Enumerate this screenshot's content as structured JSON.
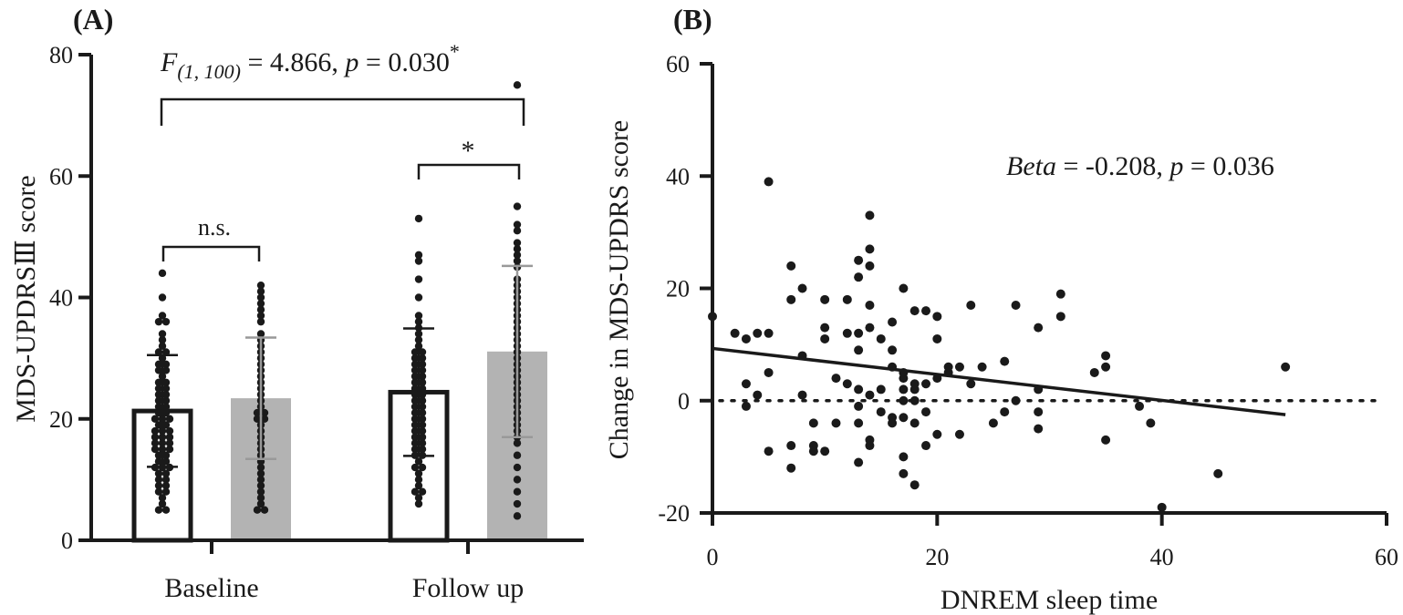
{
  "chart_data": [
    {
      "panel_label": "(A)",
      "type": "bar",
      "ylabel": "MDS-UPDRSⅢ score",
      "ylim": [
        0,
        80
      ],
      "yticks": [
        "0",
        "20",
        "40",
        "60",
        "80"
      ],
      "categories": [
        "Baseline",
        "Follow up"
      ],
      "series": [
        {
          "fill": "#ffffff",
          "edge": "#1a1a1a",
          "errcolor": "#1a1a1a",
          "values": [
            21.3,
            24.4
          ],
          "sd": [
            9.2,
            10.5
          ],
          "points": [
            [
              5,
              5,
              6,
              7,
              8,
              8,
              9,
              9,
              10,
              10,
              11,
              11,
              12,
              12,
              12,
              13,
              13,
              14,
              14,
              15,
              15,
              15,
              16,
              16,
              16,
              17,
              17,
              17,
              18,
              18,
              18,
              19,
              19,
              20,
              20,
              20,
              21,
              21,
              22,
              22,
              23,
              23,
              24,
              24,
              25,
              25,
              26,
              26,
              27,
              28,
              28,
              29,
              29,
              30,
              31,
              31,
              32,
              33,
              34,
              36,
              36,
              37,
              40,
              44
            ],
            [
              6,
              7,
              8,
              8,
              9,
              10,
              11,
              12,
              12,
              13,
              14,
              14,
              15,
              15,
              16,
              16,
              17,
              17,
              18,
              18,
              19,
              19,
              20,
              20,
              21,
              21,
              22,
              22,
              23,
              23,
              24,
              24,
              25,
              25,
              26,
              26,
              27,
              27,
              28,
              28,
              29,
              29,
              30,
              30,
              31,
              31,
              32,
              33,
              34,
              35,
              36,
              37,
              40,
              43,
              46,
              47,
              53
            ]
          ]
        },
        {
          "fill": "#b3b3b3",
          "edge": "#b3b3b3",
          "errcolor": "#999999",
          "values": [
            23.4,
            31.1
          ],
          "sd": [
            10.0,
            14.1
          ],
          "points": [
            [
              5,
              5,
              6,
              7,
              8,
              9,
              10,
              11,
              12,
              13,
              14,
              15,
              16,
              17,
              18,
              19,
              20,
              20,
              21,
              21,
              22,
              23,
              24,
              25,
              26,
              27,
              28,
              29,
              30,
              31,
              32,
              33,
              34,
              36,
              37,
              38,
              39,
              40,
              41,
              42
            ],
            [
              4,
              6,
              8,
              10,
              12,
              14,
              16,
              17,
              18,
              19,
              20,
              21,
              22,
              23,
              24,
              25,
              26,
              27,
              28,
              29,
              30,
              31,
              32,
              33,
              34,
              35,
              36,
              37,
              38,
              39,
              40,
              41,
              42,
              43,
              45,
              46,
              47,
              48,
              49,
              51,
              52,
              55,
              75
            ]
          ]
        }
      ],
      "annotations": {
        "overall_test": {
          "F": "F",
          "df": "(1, 100)",
          "rest": " = 4.866, ",
          "p": "p",
          "pval": " = 0.030",
          "star": "*"
        },
        "baseline_test": "n.s.",
        "followup_test": "*"
      }
    },
    {
      "panel_label": "(B)",
      "type": "scatter",
      "xlabel": "DNREM sleep time",
      "ylabel": "Change in MDS-UPDRS score",
      "xlim": [
        0,
        60
      ],
      "ylim": [
        -20,
        60
      ],
      "xticks": [
        "0",
        "20",
        "40",
        "60"
      ],
      "yticks": [
        "-20",
        "0",
        "20",
        "40",
        "60"
      ],
      "annotation": {
        "beta": "Beta",
        "rest": " = -0.208, ",
        "p": "p",
        "pval": " = 0.036"
      },
      "regression": {
        "x": [
          0,
          51
        ],
        "y": [
          9.3,
          -2.5
        ]
      },
      "reference_line_y": 0,
      "points": [
        [
          0,
          15
        ],
        [
          2,
          12
        ],
        [
          3,
          11
        ],
        [
          3,
          3
        ],
        [
          3,
          -1
        ],
        [
          4,
          12
        ],
        [
          4,
          1
        ],
        [
          5,
          12
        ],
        [
          5,
          5
        ],
        [
          5,
          39
        ],
        [
          5,
          -9
        ],
        [
          7,
          24
        ],
        [
          7,
          18
        ],
        [
          7,
          -8
        ],
        [
          7,
          -12
        ],
        [
          8,
          20
        ],
        [
          8,
          8
        ],
        [
          8,
          1
        ],
        [
          9,
          -4
        ],
        [
          9,
          -8
        ],
        [
          9,
          -9
        ],
        [
          10,
          18
        ],
        [
          10,
          13
        ],
        [
          10,
          11
        ],
        [
          10,
          -9
        ],
        [
          11,
          4
        ],
        [
          11,
          -4
        ],
        [
          12,
          18
        ],
        [
          12,
          12
        ],
        [
          12,
          3
        ],
        [
          13,
          25
        ],
        [
          13,
          22
        ],
        [
          13,
          12
        ],
        [
          13,
          9
        ],
        [
          13,
          2
        ],
        [
          13,
          -1
        ],
        [
          13,
          -4
        ],
        [
          13,
          -11
        ],
        [
          14,
          33
        ],
        [
          14,
          27
        ],
        [
          14,
          24
        ],
        [
          14,
          17
        ],
        [
          14,
          13
        ],
        [
          14,
          1
        ],
        [
          14,
          -7
        ],
        [
          14,
          -8
        ],
        [
          15,
          11
        ],
        [
          15,
          2
        ],
        [
          15,
          -2
        ],
        [
          16,
          14
        ],
        [
          16,
          9
        ],
        [
          16,
          6
        ],
        [
          16,
          -3
        ],
        [
          16,
          -4
        ],
        [
          17,
          20
        ],
        [
          17,
          5
        ],
        [
          17,
          4
        ],
        [
          17,
          2
        ],
        [
          17,
          0
        ],
        [
          17,
          -3
        ],
        [
          17,
          -10
        ],
        [
          17,
          -13
        ],
        [
          18,
          16
        ],
        [
          18,
          3
        ],
        [
          18,
          2
        ],
        [
          18,
          0
        ],
        [
          18,
          -4
        ],
        [
          18,
          -15
        ],
        [
          19,
          16
        ],
        [
          19,
          3
        ],
        [
          19,
          -2
        ],
        [
          19,
          -8
        ],
        [
          20,
          15
        ],
        [
          20,
          11
        ],
        [
          20,
          4
        ],
        [
          20,
          -6
        ],
        [
          21,
          6
        ],
        [
          21,
          5
        ],
        [
          22,
          6
        ],
        [
          22,
          -6
        ],
        [
          23,
          17
        ],
        [
          23,
          3
        ],
        [
          24,
          6
        ],
        [
          25,
          -4
        ],
        [
          26,
          7
        ],
        [
          26,
          -2
        ],
        [
          27,
          17
        ],
        [
          27,
          0
        ],
        [
          29,
          13
        ],
        [
          29,
          2
        ],
        [
          29,
          -2
        ],
        [
          29,
          -5
        ],
        [
          31,
          19
        ],
        [
          31,
          15
        ],
        [
          34,
          5
        ],
        [
          35,
          8
        ],
        [
          35,
          6
        ],
        [
          35,
          -7
        ],
        [
          38,
          -1
        ],
        [
          39,
          -4
        ],
        [
          40,
          -19
        ],
        [
          45,
          -13
        ],
        [
          51,
          6
        ]
      ]
    }
  ]
}
